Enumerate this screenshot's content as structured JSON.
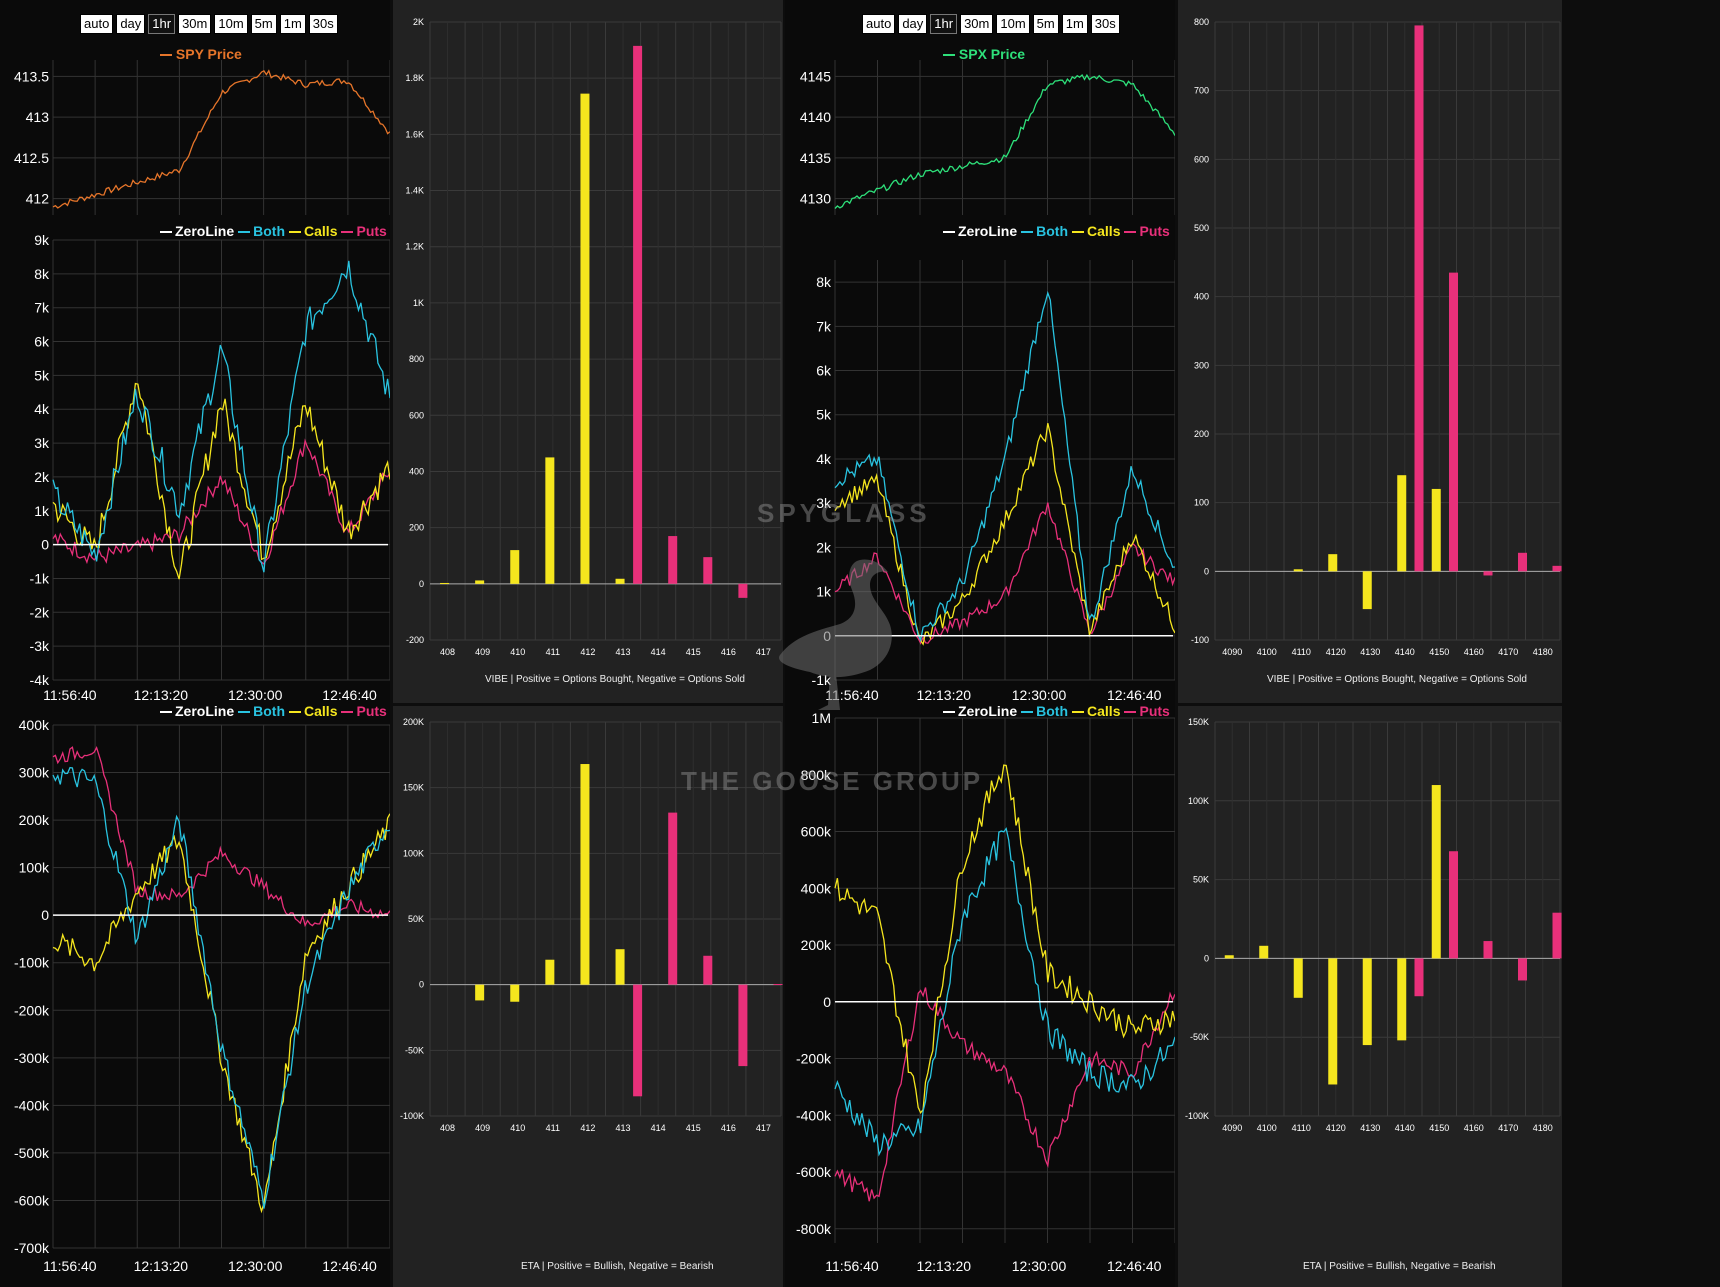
{
  "timeframes": [
    "auto",
    "day",
    "1hr",
    "30m",
    "10m",
    "5m",
    "1m",
    "30s"
  ],
  "active_timeframe": "1hr",
  "legend": [
    {
      "label": "ZeroLine",
      "color": "#ffffff"
    },
    {
      "label": "Both",
      "color": "#29c3e0"
    },
    {
      "label": "Calls",
      "color": "#f5e61e"
    },
    {
      "label": "Puts",
      "color": "#e8307a"
    }
  ],
  "watermark": {
    "line1": "SPYGLASS",
    "line2": "THE GOOSE GROUP"
  },
  "captions": {
    "vibe": "VIBE | Positive = Options Bought, Negative = Options Sold",
    "eta": "ETA | Positive = Bullish, Negative = Bearish"
  },
  "colors": {
    "price_spy": "#e6752a",
    "price_spx": "#2ee07a",
    "calls": "#f5e61e",
    "puts": "#e8307a",
    "both": "#29c3e0",
    "zero": "#ffffff"
  },
  "spy": {
    "price_title": "SPY Price",
    "price_ticks": [
      "413.5",
      "413",
      "412.5",
      "412"
    ],
    "vibe_line_ticks": [
      "9k",
      "8k",
      "7k",
      "6k",
      "5k",
      "4k",
      "3k",
      "2k",
      "1k",
      "0",
      "-1k",
      "-2k",
      "-3k",
      "-4k"
    ],
    "eta_line_ticks": [
      "400k",
      "300k",
      "200k",
      "100k",
      "0",
      "-100k",
      "-200k",
      "-300k",
      "-400k",
      "-500k",
      "-600k",
      "-700k"
    ],
    "time_ticks": [
      "11:56:40",
      "12:13:20",
      "12:30:00",
      "12:46:40"
    ]
  },
  "spx": {
    "price_title": "SPX Price",
    "price_ticks": [
      "4145",
      "4140",
      "4135",
      "4130"
    ],
    "vibe_line_ticks": [
      "8k",
      "7k",
      "6k",
      "5k",
      "4k",
      "3k",
      "2k",
      "1k",
      "0",
      "-1k"
    ],
    "eta_line_ticks": [
      "1M",
      "800k",
      "600k",
      "400k",
      "200k",
      "0",
      "-200k",
      "-400k",
      "-600k",
      "-800k"
    ],
    "time_ticks": [
      "11:56:40",
      "12:13:20",
      "12:30:00",
      "12:46:40"
    ]
  },
  "chart_data": [
    {
      "type": "line",
      "title": "SPY Price",
      "series": [
        {
          "name": "SPY Price"
        }
      ],
      "ylim": [
        411.8,
        413.7
      ],
      "x": [
        "11:52",
        "11:56:40",
        "12:05",
        "12:13:20",
        "12:20",
        "12:30:00",
        "12:40",
        "12:46:40",
        "12:52"
      ],
      "values": [
        411.9,
        412.05,
        412.2,
        412.35,
        413.3,
        413.55,
        413.4,
        413.45,
        412.8
      ]
    },
    {
      "type": "line",
      "ylim": [
        -4000,
        9000
      ],
      "x": [
        "11:52",
        "11:56:40",
        "12:05",
        "12:13:20",
        "12:20",
        "12:30:00",
        "12:40",
        "12:46:40",
        "12:52"
      ],
      "series": [
        {
          "name": "Both",
          "values": [
            1500,
            -300,
            4500,
            1000,
            5800,
            -700,
            6400,
            8300,
            4300
          ]
        },
        {
          "name": "Calls",
          "values": [
            1200,
            -200,
            5000,
            -1000,
            4300,
            -300,
            4200,
            400,
            2300
          ]
        },
        {
          "name": "Puts",
          "values": [
            200,
            -400,
            -100,
            300,
            2000,
            -600,
            3100,
            300,
            2200
          ]
        }
      ]
    },
    {
      "type": "bar",
      "categories": [
        "408",
        "409",
        "410",
        "411",
        "412",
        "413",
        "414",
        "415",
        "416",
        "417"
      ],
      "ylim": [
        -200,
        2000
      ],
      "series": [
        {
          "name": "Calls",
          "values": [
            3,
            12,
            120,
            450,
            1745,
            18,
            0,
            0,
            0,
            0
          ]
        },
        {
          "name": "Puts",
          "values": [
            0,
            0,
            0,
            0,
            0,
            1915,
            170,
            95,
            -50,
            0
          ]
        }
      ]
    },
    {
      "type": "line",
      "ylim": [
        -700000,
        400000
      ],
      "x": [
        "11:52",
        "11:56:40",
        "12:05",
        "12:13:20",
        "12:20",
        "12:30:00",
        "12:40",
        "12:46:40",
        "12:52"
      ],
      "series": [
        {
          "name": "Both",
          "values": [
            300000,
            280000,
            -50000,
            200000,
            -280000,
            -600000,
            -150000,
            50000,
            200000
          ]
        },
        {
          "name": "Calls",
          "values": [
            -50000,
            -100000,
            50000,
            160000,
            -300000,
            -620000,
            -80000,
            60000,
            190000
          ]
        },
        {
          "name": "Puts",
          "values": [
            330000,
            350000,
            50000,
            40000,
            130000,
            60000,
            -20000,
            20000,
            0
          ]
        }
      ]
    },
    {
      "type": "bar",
      "categories": [
        "408",
        "409",
        "410",
        "411",
        "412",
        "413",
        "414",
        "415",
        "416",
        "417"
      ],
      "ylim": [
        -100000,
        200000
      ],
      "series": [
        {
          "name": "Calls",
          "values": [
            0,
            -12000,
            -13000,
            19000,
            168000,
            27000,
            0,
            0,
            0,
            0
          ]
        },
        {
          "name": "Puts",
          "values": [
            0,
            0,
            0,
            0,
            0,
            -85000,
            131000,
            22000,
            -62000,
            500
          ]
        }
      ]
    },
    {
      "type": "line",
      "title": "SPX Price",
      "series": [
        {
          "name": "SPX Price"
        }
      ],
      "ylim": [
        4128,
        4147
      ],
      "x": [
        "11:52",
        "11:56:40",
        "12:05",
        "12:13:20",
        "12:20",
        "12:30:00",
        "12:40",
        "12:46:40",
        "12:52"
      ],
      "values": [
        4129,
        4131,
        4133,
        4134,
        4135,
        4144,
        4145,
        4144,
        4138
      ]
    },
    {
      "type": "line",
      "ylim": [
        -1000,
        8000
      ],
      "x": [
        "11:52",
        "11:56:40",
        "12:05",
        "12:13:20",
        "12:20",
        "12:30:00",
        "12:40",
        "12:46:40",
        "12:52"
      ],
      "series": [
        {
          "name": "Both",
          "values": [
            3500,
            4000,
            0,
            1200,
            4000,
            7900,
            200,
            3800,
            1500
          ]
        },
        {
          "name": "Calls",
          "values": [
            3000,
            3500,
            -200,
            800,
            2600,
            4700,
            100,
            2300,
            200
          ]
        },
        {
          "name": "Puts",
          "values": [
            1000,
            1800,
            -100,
            300,
            900,
            3000,
            50,
            2000,
            1200
          ]
        }
      ]
    },
    {
      "type": "bar",
      "categories": [
        "4090",
        "4100",
        "4110",
        "4120",
        "4130",
        "4140",
        "4150",
        "4160",
        "4170",
        "4180"
      ],
      "ylim": [
        -100,
        800
      ],
      "series": [
        {
          "name": "Calls",
          "values": [
            0,
            0,
            3,
            25,
            -55,
            140,
            120,
            0,
            0,
            0
          ]
        },
        {
          "name": "Puts",
          "values": [
            0,
            0,
            0,
            0,
            0,
            795,
            435,
            -6,
            27,
            8
          ]
        }
      ]
    },
    {
      "type": "line",
      "ylim": [
        -800000,
        1000000
      ],
      "x": [
        "11:52",
        "11:56:40",
        "12:05",
        "12:13:20",
        "12:20",
        "12:30:00",
        "12:40",
        "12:46:40",
        "12:52"
      ],
      "series": [
        {
          "name": "Both",
          "values": [
            -300000,
            -500000,
            -450000,
            300000,
            600000,
            -100000,
            -250000,
            -300000,
            -150000
          ]
        },
        {
          "name": "Calls",
          "values": [
            400000,
            300000,
            -400000,
            500000,
            850000,
            100000,
            0,
            -100000,
            -50000
          ]
        },
        {
          "name": "Puts",
          "values": [
            -600000,
            -700000,
            50000,
            -150000,
            -250000,
            -550000,
            -200000,
            -250000,
            50000
          ]
        }
      ]
    },
    {
      "type": "bar",
      "categories": [
        "4090",
        "4100",
        "4110",
        "4120",
        "4130",
        "4140",
        "4150",
        "4160",
        "4170",
        "4180"
      ],
      "ylim": [
        -100000,
        150000
      ],
      "series": [
        {
          "name": "Calls",
          "values": [
            2000,
            8000,
            -25000,
            -80000,
            -55000,
            -52000,
            110000,
            0,
            0,
            0
          ]
        },
        {
          "name": "Puts",
          "values": [
            0,
            0,
            0,
            0,
            0,
            -24000,
            68000,
            11000,
            -14000,
            29000
          ]
        }
      ]
    }
  ]
}
